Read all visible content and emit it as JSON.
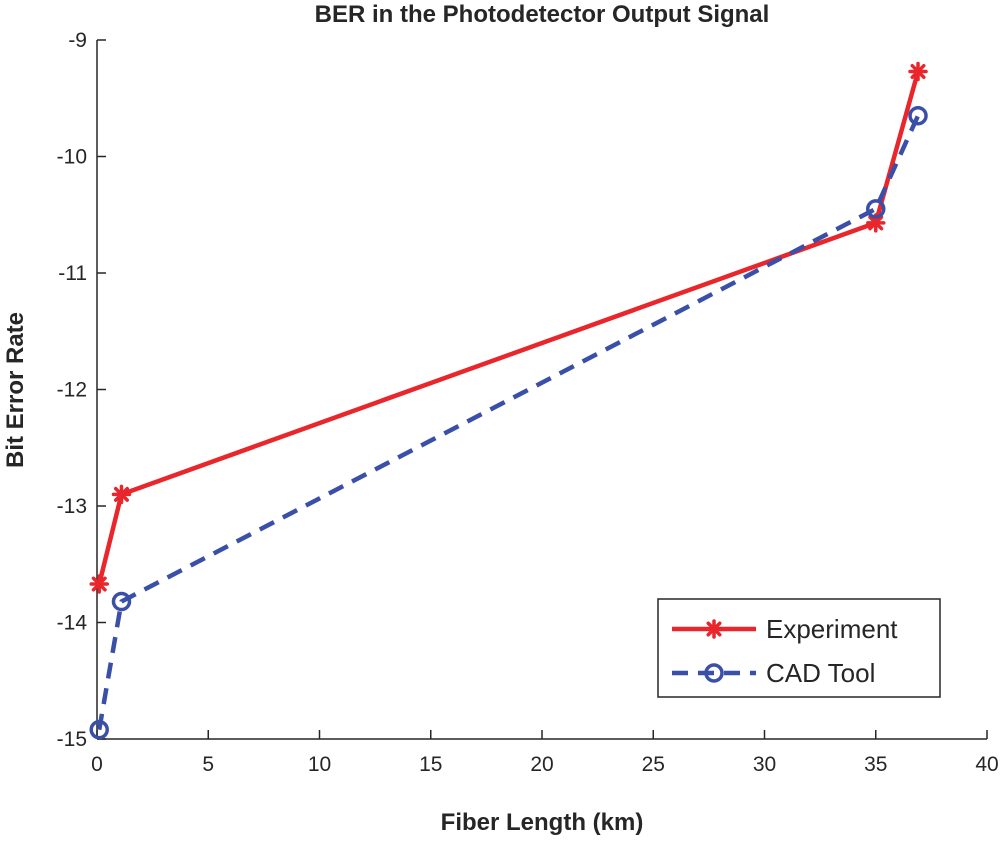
{
  "chart_data": {
    "type": "line",
    "title": "BER in the Photodetector Output Signal",
    "xlabel": "Fiber Length (km)",
    "ylabel": "Bit Error Rate",
    "xlim": [
      0,
      40
    ],
    "ylim": [
      -15,
      -9
    ],
    "xticks": [
      "0",
      "5",
      "10",
      "15",
      "20",
      "25",
      "30",
      "35",
      "40"
    ],
    "yticks": [
      "-9",
      "-10",
      "-11",
      "-12",
      "-13",
      "-14",
      "-15"
    ],
    "grid": false,
    "legend_position": "bottom-right",
    "series": [
      {
        "name": "Experiment",
        "color": "#e8262b",
        "marker": "asterisk",
        "line_style": "solid",
        "x": [
          0.1,
          1.1,
          35.0,
          36.9
        ],
        "y": [
          -13.67,
          -12.9,
          -10.57,
          -9.27
        ]
      },
      {
        "name": "CAD Tool",
        "color": "#3a4fa8",
        "marker": "circle",
        "line_style": "dashed",
        "x": [
          0.1,
          1.1,
          35.0,
          36.9
        ],
        "y": [
          -14.92,
          -13.82,
          -10.45,
          -9.65
        ]
      }
    ]
  }
}
